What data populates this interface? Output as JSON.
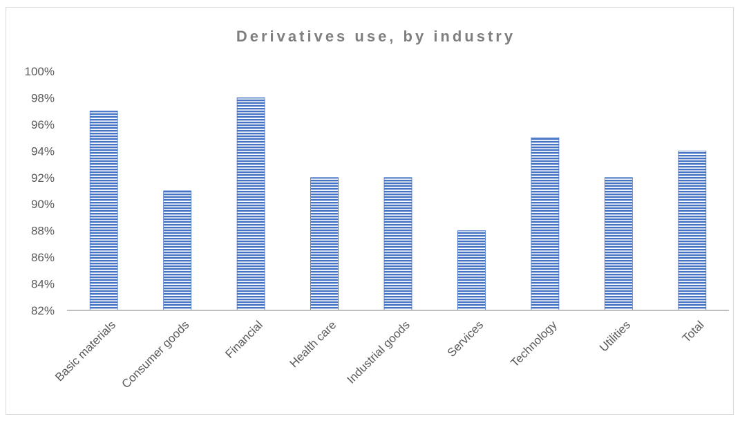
{
  "chart_data": {
    "type": "bar",
    "title": "Derivatives use, by industry",
    "xlabel": "",
    "ylabel": "",
    "categories": [
      "Basic materials",
      "Consumer goods",
      "Financial",
      "Health care",
      "Industrial goods",
      "Services",
      "Technology",
      "Utilities",
      "Total"
    ],
    "values": [
      0.97,
      0.91,
      0.98,
      0.92,
      0.92,
      0.88,
      0.95,
      0.92,
      0.94
    ],
    "ylim": [
      0.82,
      1.0
    ],
    "yticks": [
      0.82,
      0.84,
      0.86,
      0.88,
      0.9,
      0.92,
      0.94,
      0.96,
      0.98,
      1.0
    ],
    "ytick_labels": [
      "82%",
      "84%",
      "86%",
      "88%",
      "90%",
      "92%",
      "94%",
      "96%",
      "98%",
      "100%"
    ],
    "grid": false,
    "legend": "none",
    "bar_color": "#4472c4",
    "bar_fill_pattern": "horizontal-stripes"
  }
}
